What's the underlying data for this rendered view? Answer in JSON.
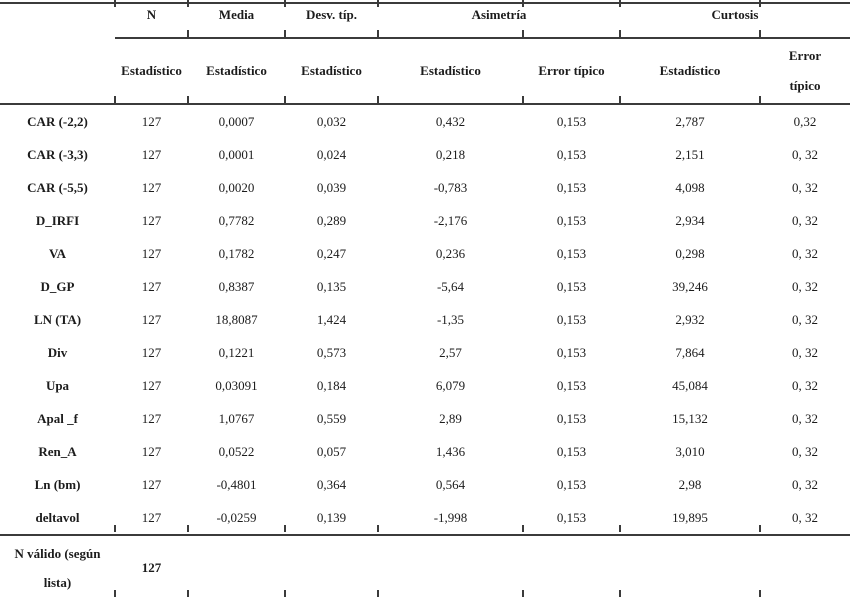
{
  "table": {
    "header_groups": {
      "n": "N",
      "media": "Media",
      "desv": "Desv. típ.",
      "asimetria": "Asimetría",
      "curtosis": "Curtosis"
    },
    "subheaders": {
      "n": "Estadístico",
      "media": "Estadístico",
      "desv": "Estadístico",
      "asim_est": "Estadístico",
      "asim_err": "Error típico",
      "curt_est": "Estadístico",
      "curt_err": "Error típico"
    },
    "rows": [
      {
        "label": "CAR (-2,2)",
        "n": "127",
        "media": "0,0007",
        "desv": "0,032",
        "asim_est": "0,432",
        "asim_err": "0,153",
        "curt_est": "2,787",
        "curt_err": "0,32"
      },
      {
        "label": "CAR (-3,3)",
        "n": "127",
        "media": "0,0001",
        "desv": "0,024",
        "asim_est": "0,218",
        "asim_err": "0,153",
        "curt_est": "2,151",
        "curt_err": "0, 32"
      },
      {
        "label": "CAR (-5,5)",
        "n": "127",
        "media": "0,0020",
        "desv": "0,039",
        "asim_est": "-0,783",
        "asim_err": "0,153",
        "curt_est": "4,098",
        "curt_err": "0, 32"
      },
      {
        "label": "D_IRFI",
        "n": "127",
        "media": "0,7782",
        "desv": "0,289",
        "asim_est": "-2,176",
        "asim_err": "0,153",
        "curt_est": "2,934",
        "curt_err": "0, 32"
      },
      {
        "label": "VA",
        "n": "127",
        "media": "0,1782",
        "desv": "0,247",
        "asim_est": "0,236",
        "asim_err": "0,153",
        "curt_est": "0,298",
        "curt_err": "0, 32"
      },
      {
        "label": "D_GP",
        "n": "127",
        "media": "0,8387",
        "desv": "0,135",
        "asim_est": "-5,64",
        "asim_err": "0,153",
        "curt_est": "39,246",
        "curt_err": "0, 32"
      },
      {
        "label": "LN (TA)",
        "n": "127",
        "media": "18,8087",
        "desv": "1,424",
        "asim_est": "-1,35",
        "asim_err": "0,153",
        "curt_est": "2,932",
        "curt_err": "0, 32"
      },
      {
        "label": "Div",
        "n": "127",
        "media": "0,1221",
        "desv": "0,573",
        "asim_est": "2,57",
        "asim_err": "0,153",
        "curt_est": "7,864",
        "curt_err": "0, 32"
      },
      {
        "label": "Upa",
        "n": "127",
        "media": "0,03091",
        "desv": "0,184",
        "asim_est": "6,079",
        "asim_err": "0,153",
        "curt_est": "45,084",
        "curt_err": "0, 32"
      },
      {
        "label": "Apal _f",
        "n": "127",
        "media": "1,0767",
        "desv": "0,559",
        "asim_est": "2,89",
        "asim_err": "0,153",
        "curt_est": "15,132",
        "curt_err": "0, 32"
      },
      {
        "label": "Ren_A",
        "n": "127",
        "media": "0,0522",
        "desv": "0,057",
        "asim_est": "1,436",
        "asim_err": "0,153",
        "curt_est": "3,010",
        "curt_err": "0, 32"
      },
      {
        "label": "Ln (bm)",
        "n": "127",
        "media": "-0,4801",
        "desv": "0,364",
        "asim_est": "0,564",
        "asim_err": "0,153",
        "curt_est": "2,98",
        "curt_err": "0, 32"
      },
      {
        "label": "deltavol",
        "n": "127",
        "media": "-0,0259",
        "desv": "0,139",
        "asim_est": "-1,998",
        "asim_err": "0,153",
        "curt_est": "19,895",
        "curt_err": "0, 32"
      }
    ],
    "footer": {
      "label": "N válido (según lista)",
      "n": "127"
    }
  },
  "colors": {
    "text": "#1c1c1c",
    "rule": "#3b3b3b",
    "background": "#ffffff"
  }
}
